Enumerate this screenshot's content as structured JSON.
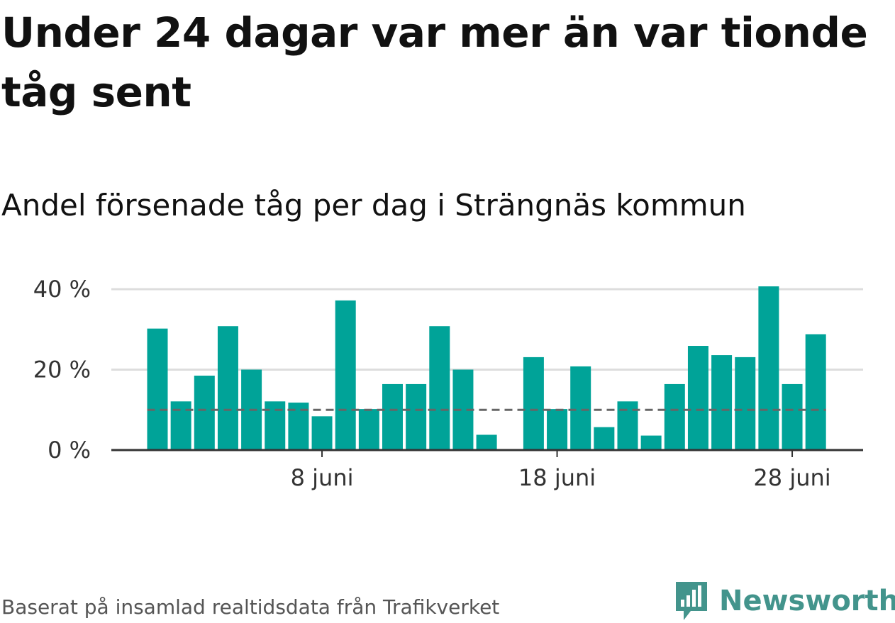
{
  "title": "Under 24 dagar var mer än var tionde tåg sent",
  "subtitle": "Andel försenade tåg per dag i Strängnäs kommun",
  "source": "Baserat på insamlad realtidsdata från Trafikverket",
  "brand": {
    "name": "Newsworthy",
    "color": "#43948c",
    "icon": "newsworthy-logo-icon"
  },
  "colors": {
    "bar": "#00a398",
    "reference": "#666666",
    "grid": "#dddddd",
    "axis": "#333333"
  },
  "chart_data": {
    "type": "bar",
    "x": [
      "1 juni",
      "2 juni",
      "3 juni",
      "4 juni",
      "5 juni",
      "6 juni",
      "7 juni",
      "8 juni",
      "9 juni",
      "10 juni",
      "11 juni",
      "12 juni",
      "13 juni",
      "14 juni",
      "15 juni",
      "16 juni",
      "17 juni",
      "18 juni",
      "19 juni",
      "20 juni",
      "21 juni",
      "22 juni",
      "23 juni",
      "24 juni",
      "25 juni",
      "26 juni",
      "27 juni",
      "28 juni",
      "29 juni",
      "30 juni"
    ],
    "values": [
      30.2,
      12.1,
      18.5,
      30.8,
      20.0,
      12.1,
      11.8,
      8.4,
      37.2,
      10.2,
      16.4,
      16.4,
      30.8,
      20.0,
      3.8,
      null,
      23.1,
      10.2,
      20.8,
      5.7,
      12.1,
      3.6,
      16.4,
      25.9,
      23.6,
      23.1,
      40.7,
      16.4,
      28.8,
      null
    ],
    "reference_line": 10,
    "ylim": [
      0,
      42
    ],
    "y_ticks": [
      {
        "value": 0,
        "label": "0 %"
      },
      {
        "value": 20,
        "label": "20 %"
      },
      {
        "value": 40,
        "label": "40 %"
      }
    ],
    "x_ticks": [
      {
        "day": 8,
        "label": "8 juni"
      },
      {
        "day": 18,
        "label": "18 juni"
      },
      {
        "day": 28,
        "label": "28 juni"
      }
    ],
    "grid": true,
    "legend": "none"
  }
}
